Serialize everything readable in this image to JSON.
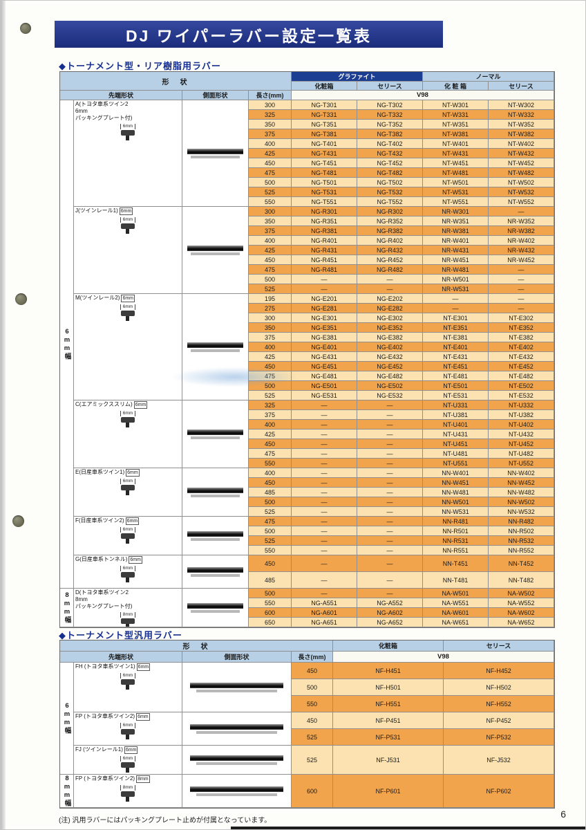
{
  "page": {
    "title": "DJ ワイパーラバー設定一覧表",
    "page_number": "6",
    "footnote": "(注) 汎用ラバーにはパッキングプレート止めが付属となっています。"
  },
  "colors": {
    "banner_navy": "#21338c",
    "header_blue": "#b7d0e6",
    "graphite_navy": "#1c3e92",
    "row_light": "#fbe2b0",
    "row_dark": "#f2a44c"
  },
  "section1": {
    "heading": "◆トーナメント型・リア樹脂用ラバー",
    "headers": {
      "shape": "形　状",
      "tip": "先端形状",
      "side": "側面形状",
      "length": "長さ(mm)",
      "graphite": "グラファイト",
      "normal": "ノーマル",
      "box": "化粧箱",
      "series": "セリース",
      "box_spaced": "化 粧 箱",
      "v98": "V98"
    },
    "width_labels": [
      {
        "label": "6mm幅"
      },
      {
        "label": "8mm幅"
      }
    ],
    "groups": [
      {
        "id": "A",
        "tag": "6mm",
        "label": "A(トヨタ車系ツイン2\n6mm\nパッキングプレート付)",
        "rows": [
          [
            "300",
            "NG-T301",
            "NG-T302",
            "NT-W301",
            "NT-W302"
          ],
          [
            "325",
            "NG-T331",
            "NG-T332",
            "NT-W331",
            "NT-W332"
          ],
          [
            "350",
            "NG-T351",
            "NG-T352",
            "NT-W351",
            "NT-W352"
          ],
          [
            "375",
            "NG-T381",
            "NG-T382",
            "NT-W381",
            "NT-W382"
          ],
          [
            "400",
            "NG-T401",
            "NG-T402",
            "NT-W401",
            "NT-W402"
          ],
          [
            "425",
            "NG-T431",
            "NG-T432",
            "NT-W431",
            "NT-W432"
          ],
          [
            "450",
            "NG-T451",
            "NG-T452",
            "NT-W451",
            "NT-W452"
          ],
          [
            "475",
            "NG-T481",
            "NG-T482",
            "NT-W481",
            "NT-W482"
          ],
          [
            "500",
            "NG-T501",
            "NG-T502",
            "NT-W501",
            "NT-W502"
          ],
          [
            "525",
            "NG-T531",
            "NG-T532",
            "NT-W531",
            "NT-W532"
          ],
          [
            "550",
            "NG-T551",
            "NG-T552",
            "NT-W551",
            "NT-W552"
          ]
        ]
      },
      {
        "id": "J",
        "tag": "6mm",
        "label": "J(ツインレール1)",
        "rows": [
          [
            "300",
            "NG-R301",
            "NG-R302",
            "NR-W301",
            "―"
          ],
          [
            "350",
            "NG-R351",
            "NG-R352",
            "NR-W351",
            "NR-W352"
          ],
          [
            "375",
            "NG-R381",
            "NG-R382",
            "NR-W381",
            "NR-W382"
          ],
          [
            "400",
            "NG-R401",
            "NG-R402",
            "NR-W401",
            "NR-W402"
          ],
          [
            "425",
            "NG-R431",
            "NG-R432",
            "NR-W431",
            "NR-W432"
          ],
          [
            "450",
            "NG-R451",
            "NG-R452",
            "NR-W451",
            "NR-W452"
          ],
          [
            "475",
            "NG-R481",
            "NG-R482",
            "NR-W481",
            "―"
          ],
          [
            "500",
            "―",
            "―",
            "NR-W501",
            "―"
          ],
          [
            "525",
            "―",
            "―",
            "NR-W531",
            "―"
          ]
        ]
      },
      {
        "id": "M",
        "tag": "6mm",
        "label": "M(ツインレール2)",
        "rows": [
          [
            "195",
            "NG-E201",
            "NG-E202",
            "―",
            "―"
          ],
          [
            "275",
            "NG-E281",
            "NG-E282",
            "―",
            "―"
          ],
          [
            "300",
            "NG-E301",
            "NG-E302",
            "NT-E301",
            "NT-E302"
          ],
          [
            "350",
            "NG-E351",
            "NG-E352",
            "NT-E351",
            "NT-E352"
          ],
          [
            "375",
            "NG-E381",
            "NG-E382",
            "NT-E381",
            "NT-E382"
          ],
          [
            "400",
            "NG-E401",
            "NG-E402",
            "NT-E401",
            "NT-E402"
          ],
          [
            "425",
            "NG-E431",
            "NG-E432",
            "NT-E431",
            "NT-E432"
          ],
          [
            "450",
            "NG-E451",
            "NG-E452",
            "NT-E451",
            "NT-E452"
          ],
          [
            "475",
            "NG-E481",
            "NG-E482",
            "NT-E481",
            "NT-E482"
          ],
          [
            "500",
            "NG-E501",
            "NG-E502",
            "NT-E501",
            "NT-E502"
          ],
          [
            "525",
            "NG-E531",
            "NG-E532",
            "NT-E531",
            "NT-E532"
          ]
        ]
      },
      {
        "id": "C",
        "tag": "6mm",
        "label": "C(エアミックススリム)",
        "rows": [
          [
            "325",
            "―",
            "―",
            "NT-U331",
            "NT-U332"
          ],
          [
            "375",
            "―",
            "―",
            "NT-U381",
            "NT-U382"
          ],
          [
            "400",
            "―",
            "―",
            "NT-U401",
            "NT-U402"
          ],
          [
            "425",
            "―",
            "―",
            "NT-U431",
            "NT-U432"
          ],
          [
            "450",
            "―",
            "―",
            "NT-U451",
            "NT-U452"
          ],
          [
            "475",
            "―",
            "―",
            "NT-U481",
            "NT-U482"
          ],
          [
            "550",
            "―",
            "―",
            "NT-U551",
            "NT-U552"
          ]
        ]
      },
      {
        "id": "E",
        "tag": "6mm",
        "label": "E(日産車系ツイン1)",
        "rows": [
          [
            "400",
            "―",
            "―",
            "NN-W401",
            "NN-W402"
          ],
          [
            "450",
            "―",
            "―",
            "NN-W451",
            "NN-W452"
          ],
          [
            "485",
            "―",
            "―",
            "NN-W481",
            "NN-W482"
          ],
          [
            "500",
            "―",
            "―",
            "NN-W501",
            "NN-W502"
          ],
          [
            "525",
            "―",
            "―",
            "NN-W531",
            "NN-W532"
          ]
        ]
      },
      {
        "id": "F",
        "tag": "6mm",
        "label": "F(日産車系ツイン2)",
        "rows": [
          [
            "475",
            "―",
            "―",
            "NN-R481",
            "NN-R482"
          ],
          [
            "500",
            "―",
            "―",
            "NN-R501",
            "NN-R502"
          ],
          [
            "525",
            "―",
            "―",
            "NN-R531",
            "NN-R532"
          ],
          [
            "550",
            "―",
            "―",
            "NN-R551",
            "NN-R552"
          ]
        ]
      },
      {
        "id": "G",
        "tag": "6mm",
        "label": "G(日産車系トンネル)",
        "rows": [
          [
            "450",
            "―",
            "―",
            "NN-T451",
            "NN-T452"
          ],
          [
            "485",
            "―",
            "―",
            "NN-T481",
            "NN-T482"
          ]
        ]
      },
      {
        "id": "D",
        "tag": "8mm",
        "label": "D(トヨタ車系ツイン2\n8mm\nパッキングプレート付)",
        "rows": [
          [
            "500",
            "―",
            "―",
            "NA-W501",
            "NA-W502"
          ],
          [
            "550",
            "NG-A551",
            "NG-A552",
            "NA-W551",
            "NA-W552"
          ],
          [
            "600",
            "NG-A601",
            "NG-A602",
            "NA-W601",
            "NA-W602"
          ],
          [
            "650",
            "NG-A651",
            "NG-A652",
            "NA-W651",
            "NA-W652"
          ]
        ]
      }
    ]
  },
  "section2": {
    "heading": "◆トーナメント型汎用ラバー",
    "headers": {
      "shape": "形　状",
      "tip": "先端形状",
      "side": "側面形状",
      "length": "長さ(mm)",
      "box": "化粧箱",
      "series": "セリース",
      "v98": "V98"
    },
    "width_labels": [
      {
        "label": "6mm幅"
      },
      {
        "label": "8mm幅"
      }
    ],
    "groups": [
      {
        "id": "FH",
        "tag": "6mm",
        "label": "FH (トヨタ車系ツイン1)",
        "rows": [
          [
            "450",
            "NF-H451",
            "NF-H452"
          ],
          [
            "500",
            "NF-H501",
            "NF-H502"
          ],
          [
            "550",
            "NF-H551",
            "NF-H552"
          ]
        ]
      },
      {
        "id": "FP6",
        "tag": "6mm",
        "label": "FP (トヨタ車系ツイン2)",
        "rows": [
          [
            "450",
            "NF-P451",
            "NF-P452"
          ],
          [
            "525",
            "NF-P531",
            "NF-P532"
          ]
        ]
      },
      {
        "id": "FJ",
        "tag": "6mm",
        "label": "FJ (ツインレール1)",
        "rows": [
          [
            "525",
            "NF-J531",
            "NF-J532"
          ]
        ]
      },
      {
        "id": "FP8",
        "tag": "8mm",
        "label": "FP (トヨタ車系ツイン2)",
        "rows": [
          [
            "600",
            "NF-P601",
            "NF-P602"
          ]
        ]
      }
    ]
  }
}
